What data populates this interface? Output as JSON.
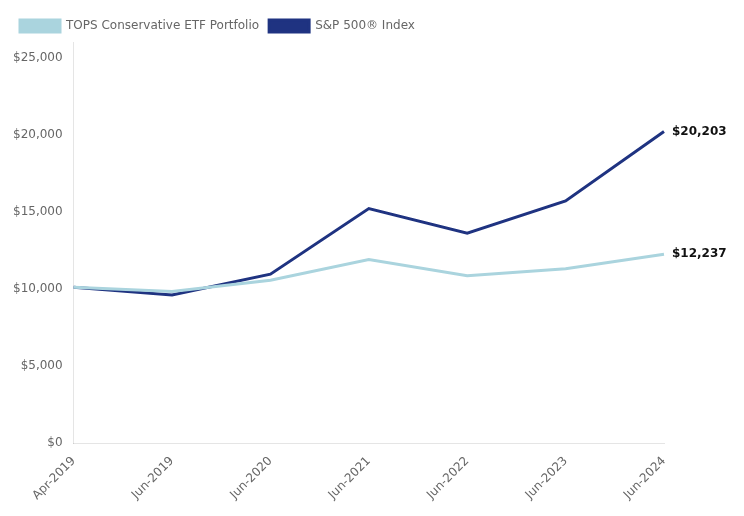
{
  "chart_data": {
    "type": "line",
    "categories": [
      "Apr-2019",
      "Jun-2019",
      "Jun-2020",
      "Jun-2021",
      "Jun-2022",
      "Jun-2023",
      "Jun-2024"
    ],
    "series": [
      {
        "name": "TOPS Conservative ETF Portfolio",
        "color": "#aad4de",
        "values": [
          10100,
          9820,
          10550,
          11900,
          10850,
          11300,
          12237
        ]
      },
      {
        "name": "S&P 500® Index",
        "color": "#1f3381",
        "values": [
          10100,
          9600,
          10950,
          15200,
          13600,
          15700,
          20203
        ]
      }
    ],
    "ylim": [
      0,
      26000
    ],
    "yticks": [
      {
        "value": 0,
        "label": "$0"
      },
      {
        "value": 5000,
        "label": "$5,000"
      },
      {
        "value": 10000,
        "label": "$10,000"
      },
      {
        "value": 15000,
        "label": "$15,000"
      },
      {
        "value": 20000,
        "label": "$20,000"
      },
      {
        "value": 25000,
        "label": "$25,000"
      }
    ],
    "annotations": [
      {
        "text": "$20,203",
        "x": "Jun-2024",
        "y": 20203
      },
      {
        "text": "$12,237",
        "x": "Jun-2024",
        "y": 12237
      }
    ],
    "grid": false,
    "legend": "upper left"
  }
}
